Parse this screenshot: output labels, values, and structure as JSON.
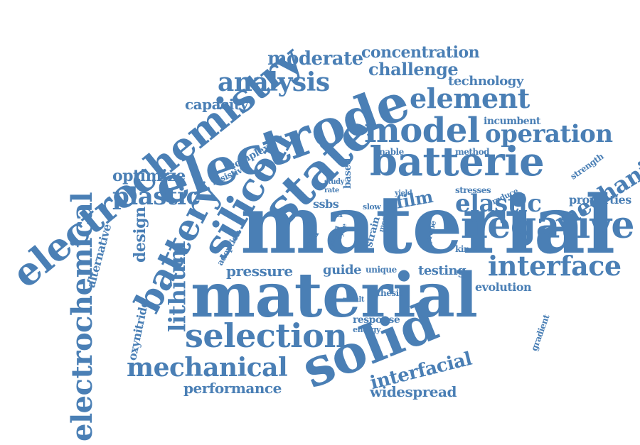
{
  "title": "",
  "color": "#4a7fb5",
  "words": [
    "electrochemistry",
    "electrode",
    "solid",
    "material",
    "electrolyte",
    "batterie",
    "state",
    "silicon",
    "negative",
    "model",
    "electrochemical",
    "battery",
    "selection",
    "interface",
    "mechanical",
    "analysis",
    "element",
    "operation",
    "mechanic",
    "elastic",
    "plastic",
    "lithium",
    "moderate",
    "concentration",
    "challenge",
    "technology",
    "capacity",
    "optimize",
    "performance",
    "interfacial",
    "widespread",
    "film",
    "pressure",
    "design",
    "evolution",
    "properties",
    "incumbent",
    "alternative",
    "oxynitride",
    "complex",
    "resistive",
    "method",
    "enable",
    "strength",
    "stresses",
    "reduce",
    "kinetic",
    "gradient",
    "testing",
    "guide",
    "unique",
    "adoption",
    "thesis",
    "result",
    "response",
    "energy",
    "ssbs",
    "study",
    "rate",
    "based",
    "yield",
    "slow",
    "str",
    "cell",
    "void",
    "young",
    "strain",
    "mech",
    "probe",
    "cycle"
  ]
}
